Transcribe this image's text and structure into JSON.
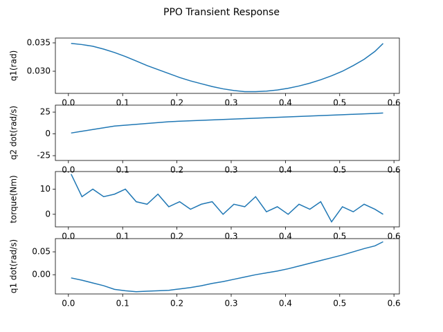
{
  "title": "PPO Transient Response",
  "chart_data": [
    {
      "type": "line",
      "y_label": "q1(rad)",
      "color": "#1f77b4",
      "x": [
        0.005,
        0.025,
        0.045,
        0.065,
        0.085,
        0.105,
        0.125,
        0.145,
        0.165,
        0.185,
        0.205,
        0.225,
        0.245,
        0.265,
        0.285,
        0.305,
        0.325,
        0.345,
        0.365,
        0.385,
        0.405,
        0.425,
        0.445,
        0.465,
        0.485,
        0.505,
        0.525,
        0.545,
        0.565,
        0.58
      ],
      "values": [
        0.0349,
        0.0347,
        0.0344,
        0.0339,
        0.0333,
        0.0326,
        0.0318,
        0.031,
        0.0303,
        0.0296,
        0.0289,
        0.0283,
        0.0278,
        0.0273,
        0.0269,
        0.0266,
        0.0264,
        0.0264,
        0.0265,
        0.0267,
        0.027,
        0.0274,
        0.0279,
        0.0285,
        0.0292,
        0.03,
        0.031,
        0.0321,
        0.0335,
        0.0349
      ],
      "xlim": [
        -0.024,
        0.61
      ],
      "xticks": [
        {
          "value": 0,
          "label": "0.0"
        },
        0.1,
        0.2,
        0.3,
        0.4,
        0.5,
        0.6
      ],
      "ylim": [
        0.0261,
        0.03585
      ],
      "yticks": [
        {
          "value": 0.03,
          "label": "0.030"
        },
        0.035
      ]
    },
    {
      "type": "line",
      "y_label": "q2 dot(rad/s)",
      "color": "#1f77b4",
      "x": [
        0.005,
        0.025,
        0.045,
        0.065,
        0.085,
        0.105,
        0.125,
        0.145,
        0.165,
        0.185,
        0.205,
        0.225,
        0.245,
        0.265,
        0.285,
        0.305,
        0.325,
        0.345,
        0.365,
        0.385,
        0.405,
        0.425,
        0.445,
        0.465,
        0.485,
        0.505,
        0.525,
        0.545,
        0.565,
        0.58
      ],
      "values": [
        1,
        3,
        5,
        7,
        9,
        10,
        11,
        12,
        13,
        14,
        14.5,
        15,
        15.5,
        16,
        16.5,
        17,
        17.5,
        18,
        18.5,
        19,
        19.5,
        20,
        20.5,
        21,
        21.5,
        22,
        22.5,
        23,
        23.5,
        24
      ],
      "xlim": [
        -0.024,
        0.61
      ],
      "xticks": [
        {
          "value": 0,
          "label": "0.0"
        },
        0.1,
        0.2,
        0.3,
        0.4,
        0.5,
        0.6
      ],
      "ylim": [
        -30.5,
        33
      ],
      "yticks": [
        -25,
        0,
        25
      ]
    },
    {
      "type": "line",
      "y_label": "torque(Nm)",
      "color": "#1f77b4",
      "x": [
        0.005,
        0.025,
        0.045,
        0.065,
        0.085,
        0.105,
        0.125,
        0.145,
        0.165,
        0.185,
        0.205,
        0.225,
        0.245,
        0.265,
        0.285,
        0.305,
        0.325,
        0.345,
        0.365,
        0.385,
        0.405,
        0.425,
        0.445,
        0.465,
        0.485,
        0.505,
        0.525,
        0.545,
        0.565,
        0.58
      ],
      "values": [
        16,
        7,
        10,
        7,
        8,
        10,
        5,
        4,
        8,
        3,
        5,
        2,
        4,
        5,
        0,
        4,
        3,
        7,
        1,
        3,
        0,
        4,
        2,
        5,
        -3,
        3,
        1,
        4,
        2,
        0
      ],
      "xlim": [
        -0.024,
        0.61
      ],
      "xticks": [
        {
          "value": 0,
          "label": "0.0"
        },
        0.1,
        0.2,
        0.3,
        0.4,
        0.5,
        0.6
      ],
      "ylim": [
        -5,
        17
      ],
      "yticks": [
        0,
        10
      ]
    },
    {
      "type": "line",
      "y_label": "q1 dot(rad/s)",
      "color": "#1f77b4",
      "x": [
        0.005,
        0.025,
        0.045,
        0.065,
        0.085,
        0.105,
        0.125,
        0.145,
        0.165,
        0.185,
        0.205,
        0.225,
        0.245,
        0.265,
        0.285,
        0.305,
        0.325,
        0.345,
        0.365,
        0.385,
        0.405,
        0.425,
        0.445,
        0.465,
        0.485,
        0.505,
        0.525,
        0.545,
        0.565,
        0.58
      ],
      "values": [
        -0.007,
        -0.012,
        -0.018,
        -0.024,
        -0.032,
        -0.035,
        -0.037,
        -0.036,
        -0.035,
        -0.034,
        -0.031,
        -0.028,
        -0.024,
        -0.019,
        -0.015,
        -0.01,
        -0.005,
        0.0,
        0.004,
        0.008,
        0.013,
        0.019,
        0.025,
        0.031,
        0.037,
        0.043,
        0.05,
        0.057,
        0.063,
        0.072
      ],
      "xlim": [
        -0.024,
        0.61
      ],
      "xticks": [
        {
          "value": 0,
          "label": "0.0"
        },
        0.1,
        0.2,
        0.3,
        0.4,
        0.5,
        0.6
      ],
      "ylim": [
        -0.042,
        0.0788
      ],
      "yticks": [
        {
          "value": 0,
          "label": "0.00"
        },
        0.05
      ]
    }
  ]
}
